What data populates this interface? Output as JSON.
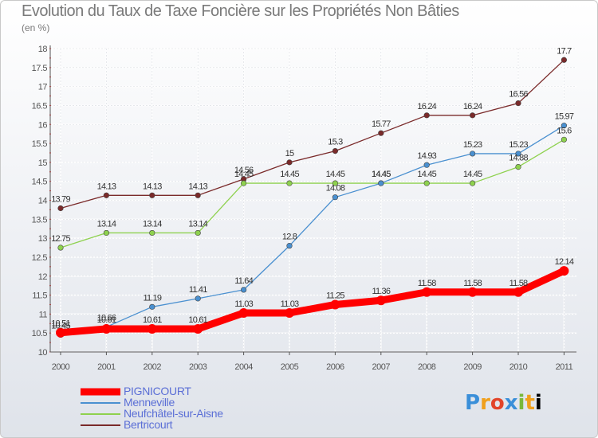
{
  "chart_data": {
    "type": "line",
    "title": "Evolution du Taux de Taxe Foncière sur les Propriétés Non Bâties",
    "unit_label": "(en %)",
    "x": [
      "2000",
      "2001",
      "2002",
      "2003",
      "2004",
      "2005",
      "2006",
      "2007",
      "2008",
      "2009",
      "2010",
      "2011"
    ],
    "ylim": [
      10,
      18
    ],
    "yticks": [
      "10",
      "10.5",
      "11",
      "11.5",
      "12",
      "12.5",
      "13",
      "13.5",
      "14",
      "14.5",
      "15",
      "15.5",
      "16",
      "16.5",
      "17",
      "17.5",
      "18"
    ],
    "grid": true,
    "legend_position": "bottom-left",
    "series": [
      {
        "name": "PIGNICOURT",
        "color": "#ff0000",
        "values": [
          10.51,
          10.61,
          10.61,
          10.61,
          11.03,
          11.03,
          11.25,
          11.36,
          11.58,
          11.58,
          11.58,
          12.14
        ],
        "labels": [
          "10.51",
          "10.61",
          "10.61",
          "10.61",
          "11.03",
          "11.03",
          "11.25",
          "11.36",
          "11.58",
          "11.58",
          "11.58",
          "12.14"
        ]
      },
      {
        "name": "Menneville",
        "color": "#4a90d0",
        "values": [
          10.45,
          10.66,
          11.19,
          11.41,
          11.64,
          12.8,
          14.08,
          14.45,
          14.93,
          15.23,
          15.23,
          15.97
        ],
        "labels": [
          "10.45",
          "10.66",
          "11.19",
          "11.41",
          "11.64",
          "12.8",
          "14.08",
          "14.45",
          "14.93",
          "15.23",
          "15.23",
          "15.97"
        ]
      },
      {
        "name": "Neufchâtel-sur-Aisne",
        "color": "#8ed14e",
        "values": [
          12.75,
          13.14,
          13.14,
          13.14,
          14.45,
          14.45,
          14.45,
          14.45,
          14.45,
          14.45,
          14.88,
          15.6
        ],
        "labels": [
          "12.75",
          "13.14",
          "13.14",
          "13.14",
          "14.45",
          "14.45",
          "14.45",
          "14.45",
          "14.45",
          "14.45",
          "14.88",
          "15.6"
        ]
      },
      {
        "name": "Bertricourt",
        "color": "#7a2a2a",
        "values": [
          13.79,
          14.13,
          14.13,
          14.13,
          14.56,
          15,
          15.3,
          15.77,
          16.24,
          16.24,
          16.56,
          17.7
        ],
        "labels": [
          "13.79",
          "14.13",
          "14.13",
          "14.13",
          "14.56",
          "15",
          "15.3",
          "15.77",
          "16.24",
          "16.24",
          "16.56",
          "17.7"
        ]
      }
    ]
  },
  "logo": {
    "letters": [
      "P",
      "r",
      "o",
      "x",
      "i",
      "t",
      "i"
    ]
  }
}
